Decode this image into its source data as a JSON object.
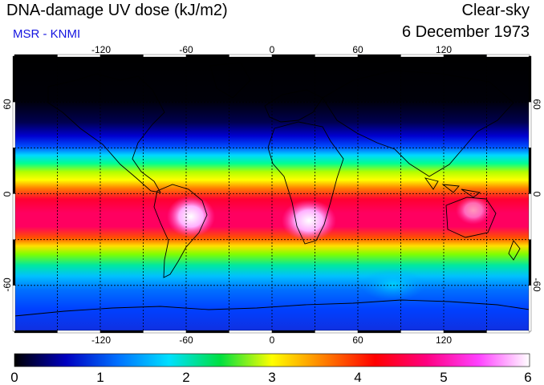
{
  "header": {
    "title": "DNA-damage UV dose (kJ/m2)",
    "subtitle": "MSR - KNMI",
    "scenario": "Clear-sky",
    "date": "6 December 1973"
  },
  "map": {
    "lon_ticks": [
      "-120",
      "-60",
      "0",
      "60",
      "120"
    ],
    "lat_ticks": [
      "60",
      "0",
      "-60"
    ],
    "lon_range": [
      -180,
      180
    ],
    "lat_range": [
      -90,
      90
    ]
  },
  "colorbar": {
    "labels": [
      "0",
      "1",
      "2",
      "3",
      "4",
      "5",
      "6"
    ],
    "range": [
      0,
      6
    ],
    "stops": [
      "#000000",
      "#0000c0",
      "#0070ff",
      "#00e0ff",
      "#00e040",
      "#ffff00",
      "#ff8000",
      "#ff0000",
      "#ff0080",
      "#ff40ff",
      "#ffffff"
    ]
  }
}
